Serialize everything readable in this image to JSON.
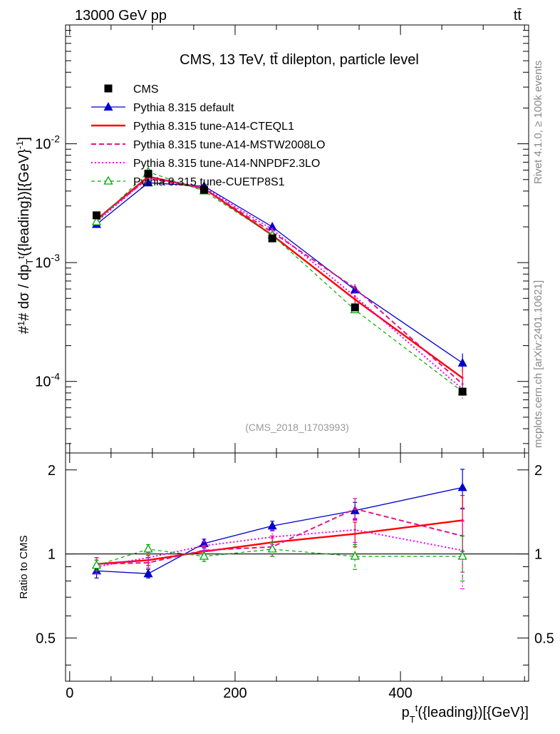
{
  "header": {
    "energy_label": "13000 GeV pp",
    "process_label": "tt̄"
  },
  "side": {
    "rivet_label": "Rivet 4.1.0, ≥ 100k events",
    "source_label": "mcplots.cern.ch [arXiv:2401.10621]"
  },
  "colors": {
    "cms": "#000000",
    "default": "#0000cc",
    "cteql1": "#ff0000",
    "mstw": "#e0158a",
    "nnpdf": "#ee00ee",
    "cuetp8s1": "#00aa00"
  },
  "chart_data": {
    "type": "line",
    "title": "CMS, 13 TeV, tt̄ dilepton, particle level",
    "analysis_id": "(CMS_2018_I1703993)",
    "xlabel": "p_T^t({leading})[{GeV}]",
    "ylabel": "#frac{1}{σ}# dσ/dp_T^t({leading})[{GeV}^-1]",
    "ratio_ylabel": "Ratio to CMS",
    "xlim": [
      -5,
      555
    ],
    "ylim": [
      2.5e-05,
      0.1
    ],
    "ratio_ylim": [
      0.35,
      2.3
    ],
    "x_ticks": [
      "0",
      "200",
      "400"
    ],
    "y_ticks": [
      "10^-4",
      "10^-3",
      "10^-2"
    ],
    "ratio_ticks": [
      "0.5",
      "1",
      "2"
    ],
    "x": [
      32.5,
      95,
      162.5,
      245,
      345,
      475
    ],
    "data": {
      "name": "CMS",
      "values": [
        0.0025,
        0.0056,
        0.0041,
        0.0016,
        0.00042,
        8.2e-05
      ]
    },
    "series": [
      {
        "name": "Pythia 8.315 default",
        "style": "solid-triangle",
        "values": [
          0.0021,
          0.0047,
          0.0044,
          0.002,
          0.00059,
          0.000143
        ],
        "ratio": [
          0.87,
          0.85,
          1.09,
          1.26,
          1.43,
          1.73
        ],
        "ratio_err": [
          0.05,
          0.03,
          0.04,
          0.05,
          0.1,
          0.28
        ]
      },
      {
        "name": "Pythia 8.315 tune-A14-CTEQL1",
        "style": "solid-thick",
        "values": [
          0.0023,
          0.0053,
          0.0042,
          0.0017,
          0.00049,
          0.000107
        ],
        "ratio": [
          0.92,
          0.95,
          1.02,
          1.1,
          1.18,
          1.32
        ],
        "ratio_err": [
          0.05,
          0.04,
          0.04,
          0.06,
          0.12,
          0.3
        ]
      },
      {
        "name": "Pythia 8.315 tune-A14-MSTW2008LO",
        "style": "dashed",
        "values": [
          0.0023,
          0.0051,
          0.0042,
          0.0018,
          0.00061,
          9.5e-05
        ],
        "ratio": [
          0.92,
          0.93,
          1.03,
          1.06,
          1.45,
          1.16
        ],
        "ratio_err": [
          0.05,
          0.04,
          0.04,
          0.08,
          0.13,
          0.3
        ]
      },
      {
        "name": "Pythia 8.315 tune-A14-NNPDF2.3LO",
        "style": "dotted",
        "values": [
          0.0022,
          0.0052,
          0.0043,
          0.0019,
          0.00052,
          8.6e-05
        ],
        "ratio": [
          0.9,
          0.97,
          1.07,
          1.15,
          1.22,
          1.03
        ],
        "ratio_err": [
          0.05,
          0.04,
          0.04,
          0.07,
          0.12,
          0.28
        ]
      },
      {
        "name": "Pythia 8.315 tune-CUETP8S1",
        "style": "dashed-open-triangle",
        "values": [
          0.0022,
          0.0058,
          0.004,
          0.0017,
          0.0004,
          8.2e-05
        ],
        "ratio": [
          0.91,
          1.04,
          0.98,
          1.04,
          0.98,
          0.98
        ],
        "ratio_err": [
          0.04,
          0.04,
          0.04,
          0.06,
          0.1,
          0.18
        ]
      }
    ]
  }
}
